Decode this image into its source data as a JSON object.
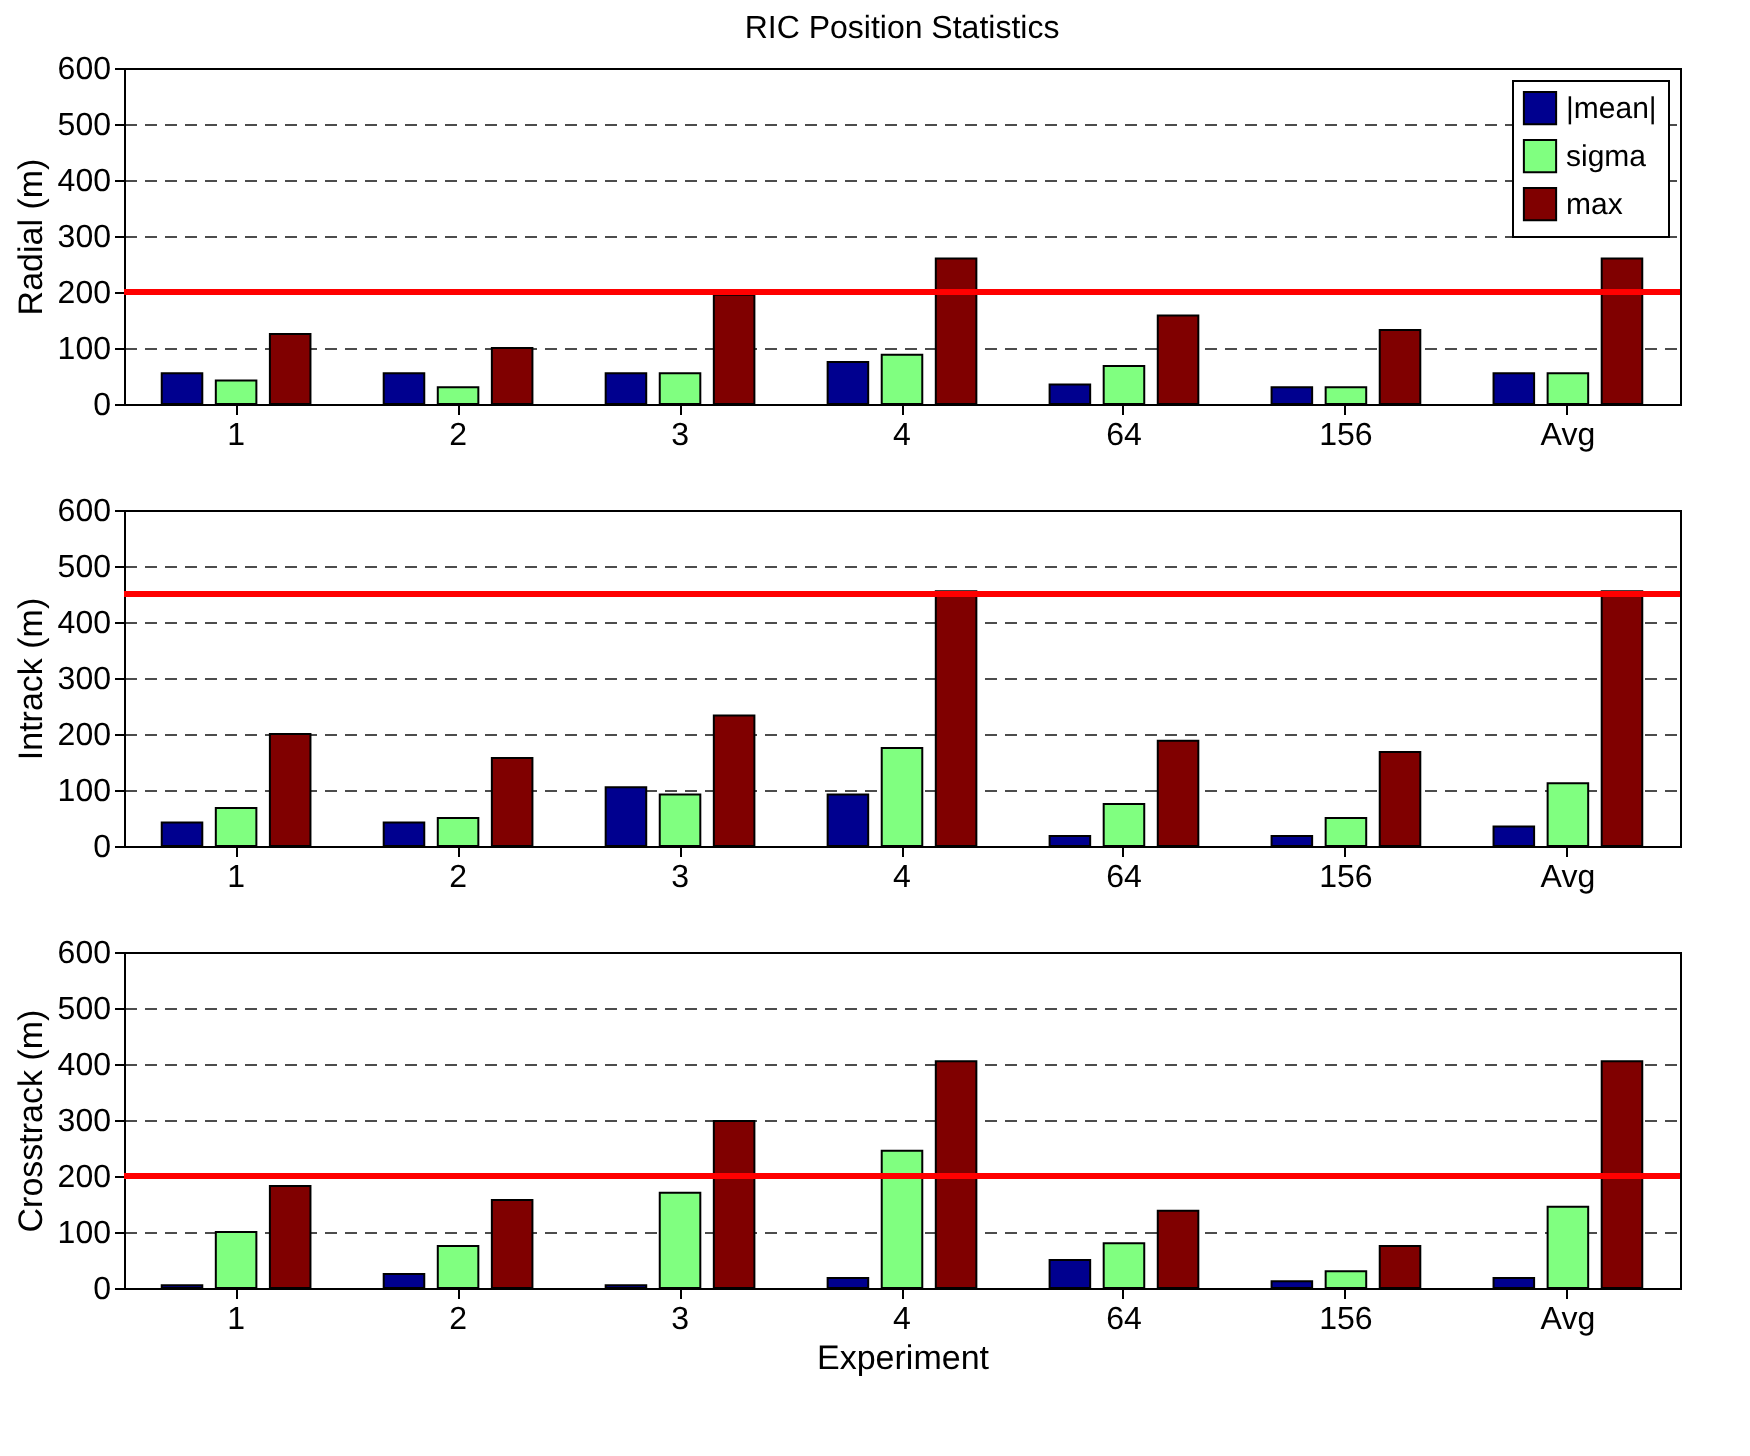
{
  "chart_data": [
    {
      "type": "bar",
      "title": "RIC Position Statistics",
      "ylabel": "Radial (m)",
      "categories": [
        "1",
        "2",
        "3",
        "4",
        "64",
        "156",
        "Avg"
      ],
      "series": [
        {
          "name": "|mean|",
          "color": "#00008f",
          "values": [
            55,
            55,
            55,
            75,
            35,
            30,
            55
          ]
        },
        {
          "name": "sigma",
          "color": "#80ff80",
          "values": [
            42,
            30,
            55,
            88,
            68,
            30,
            55
          ]
        },
        {
          "name": "max",
          "color": "#800000",
          "values": [
            125,
            100,
            195,
            260,
            158,
            132,
            260
          ]
        }
      ],
      "ylim": [
        0,
        600
      ],
      "yticks": [
        0,
        100,
        200,
        300,
        400,
        500,
        600
      ],
      "grid": "y",
      "legend": "top right",
      "ref_lines": [
        {
          "axis": "y",
          "value": 200,
          "color": "#ff0000"
        }
      ]
    },
    {
      "type": "bar",
      "ylabel": "Intrack (m)",
      "categories": [
        "1",
        "2",
        "3",
        "4",
        "64",
        "156",
        "Avg"
      ],
      "series": [
        {
          "color": "#00008f",
          "values": [
            42,
            42,
            105,
            92,
            18,
            18,
            35
          ]
        },
        {
          "color": "#80ff80",
          "values": [
            68,
            50,
            92,
            175,
            75,
            50,
            112
          ]
        },
        {
          "color": "#800000",
          "values": [
            200,
            157,
            233,
            455,
            188,
            168,
            455
          ]
        }
      ],
      "ylim": [
        0,
        600
      ],
      "yticks": [
        0,
        100,
        200,
        300,
        400,
        500,
        600
      ],
      "grid": "y",
      "ref_lines": [
        {
          "axis": "y",
          "value": 450,
          "color": "#ff0000"
        }
      ]
    },
    {
      "type": "bar",
      "xlabel": "Experiment",
      "ylabel": "Crosstrack (m)",
      "categories": [
        "1",
        "2",
        "3",
        "4",
        "64",
        "156",
        "Avg"
      ],
      "series": [
        {
          "color": "#00008f",
          "values": [
            5,
            25,
            5,
            18,
            50,
            12,
            18
          ]
        },
        {
          "color": "#80ff80",
          "values": [
            100,
            75,
            170,
            245,
            80,
            30,
            145
          ]
        },
        {
          "color": "#800000",
          "values": [
            182,
            157,
            298,
            405,
            138,
            75,
            405
          ]
        }
      ],
      "ylim": [
        0,
        600
      ],
      "yticks": [
        0,
        100,
        200,
        300,
        400,
        500,
        600
      ],
      "grid": "y",
      "ref_lines": [
        {
          "axis": "y",
          "value": 200,
          "color": "#ff0000"
        }
      ]
    }
  ]
}
